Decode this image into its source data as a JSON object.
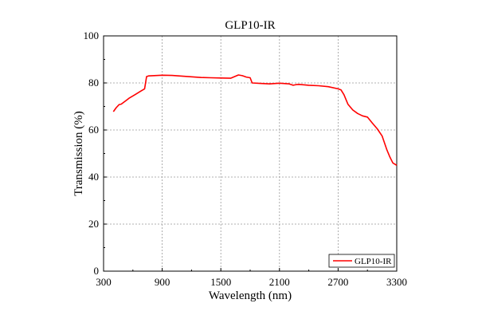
{
  "chart_data": {
    "type": "line",
    "title": "GLP10-IR",
    "xlabel": "Wavelength (nm)",
    "ylabel": "Transmission (%)",
    "xlim": [
      300,
      3300
    ],
    "ylim": [
      0,
      100
    ],
    "xticks": [
      300,
      900,
      1500,
      2100,
      2700,
      3300
    ],
    "yticks": [
      0,
      20,
      40,
      60,
      80,
      100
    ],
    "grid": true,
    "legend_position": "bottom-right",
    "series": [
      {
        "name": "GLP10-IR",
        "color": "#ff0000",
        "x": [
          400,
          430,
          460,
          480,
          520,
          560,
          620,
          680,
          720,
          740,
          760,
          800,
          900,
          1000,
          1100,
          1200,
          1300,
          1400,
          1500,
          1600,
          1680,
          1720,
          1760,
          1800,
          1820,
          1900,
          2000,
          2100,
          2200,
          2240,
          2270,
          2300,
          2400,
          2500,
          2600,
          2700,
          2730,
          2760,
          2800,
          2850,
          2900,
          2950,
          3000,
          3050,
          3100,
          3150,
          3200,
          3230,
          3260,
          3300
        ],
        "y": [
          67.8,
          69.5,
          70.8,
          71.0,
          72.2,
          73.5,
          75.0,
          76.5,
          77.5,
          82.7,
          83.0,
          83.1,
          83.3,
          83.2,
          82.9,
          82.6,
          82.3,
          82.2,
          82.1,
          82.0,
          83.4,
          83.1,
          82.5,
          82.2,
          80.0,
          79.8,
          79.6,
          79.9,
          79.6,
          79.0,
          79.3,
          79.4,
          79.0,
          78.8,
          78.4,
          77.5,
          77.0,
          75.0,
          71.0,
          68.5,
          67.0,
          66.0,
          65.5,
          63.0,
          60.5,
          57.5,
          51.5,
          48.5,
          46.0,
          45.0
        ]
      }
    ]
  }
}
